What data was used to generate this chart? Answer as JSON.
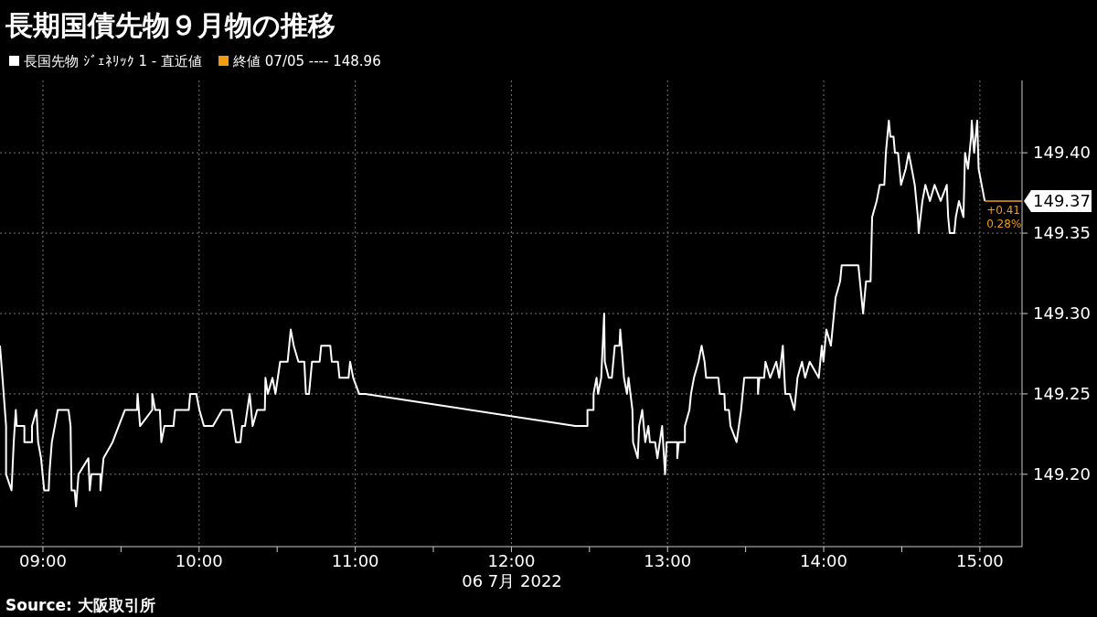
{
  "chart_data": {
    "type": "line",
    "title": "長期国債先物９月物の推移",
    "xlabel": "06 7月 2022",
    "legend": "top left",
    "grid": true,
    "marker": "none",
    "line_style": "solid",
    "xlim": [
      8.725,
      15.27
    ],
    "ylim": [
      149.155,
      149.445
    ],
    "xticks": [
      {
        "value": 9,
        "label": "09:00"
      },
      {
        "value": 9.5,
        "label": null
      },
      {
        "value": 10,
        "label": "10:00"
      },
      {
        "value": 10.5,
        "label": null
      },
      {
        "value": 11,
        "label": "11:00"
      },
      {
        "value": 11.5,
        "label": null
      },
      {
        "value": 12,
        "label": "12:00"
      },
      {
        "value": 12.5,
        "label": null
      },
      {
        "value": 13,
        "label": "13:00"
      },
      {
        "value": 13.5,
        "label": null
      },
      {
        "value": 14,
        "label": "14:00"
      },
      {
        "value": 14.5,
        "label": null
      },
      {
        "value": 15,
        "label": "15:00"
      }
    ],
    "yticks": [
      {
        "value": 149.2,
        "label": "149.20"
      },
      {
        "value": 149.25,
        "label": "149.25"
      },
      {
        "value": 149.3,
        "label": "149.30"
      },
      {
        "value": 149.35,
        "label": "149.35"
      },
      {
        "value": 149.4,
        "label": "149.40"
      }
    ],
    "series": [
      {
        "name": "長国先物 ｼﾞｪﾈﾘｯｸ 1 - 直近値",
        "color": "#ffffff",
        "x": [
          8.725,
          8.741,
          8.764,
          8.764,
          8.799,
          8.813,
          8.826,
          8.832,
          8.881,
          8.881,
          8.93,
          8.93,
          8.959,
          8.969,
          8.988,
          8.998,
          9.008,
          9.037,
          9.041,
          9.057,
          9.076,
          9.095,
          9.164,
          9.177,
          9.183,
          9.203,
          9.212,
          9.228,
          9.291,
          9.3,
          9.31,
          9.368,
          9.368,
          9.388,
          9.446,
          9.485,
          9.525,
          9.602,
          9.606,
          9.622,
          9.7,
          9.7,
          9.719,
          9.749,
          9.758,
          9.778,
          9.836,
          9.846,
          9.934,
          9.943,
          9.982,
          10.002,
          10.031,
          10.089,
          10.148,
          10.206,
          10.236,
          10.265,
          10.275,
          10.294,
          10.324,
          10.343,
          10.372,
          10.421,
          10.425,
          10.44,
          10.47,
          10.489,
          10.519,
          10.567,
          10.587,
          10.606,
          10.636,
          10.674,
          10.684,
          10.704,
          10.723,
          10.772,
          10.782,
          10.84,
          10.85,
          10.889,
          10.899,
          10.957,
          10.967,
          10.987,
          11.025,
          11.064,
          12.409,
          12.487,
          12.487,
          12.526,
          12.526,
          12.545,
          12.555,
          12.575,
          12.594,
          12.598,
          12.623,
          12.643,
          12.662,
          12.692,
          12.697,
          12.721,
          12.74,
          12.75,
          12.775,
          12.779,
          12.809,
          12.818,
          12.838,
          12.857,
          12.877,
          12.887,
          12.92,
          12.935,
          12.965,
          12.984,
          12.994,
          13.062,
          13.062,
          13.072,
          13.111,
          13.111,
          13.14,
          13.15,
          13.169,
          13.198,
          13.218,
          13.237,
          13.247,
          13.276,
          13.325,
          13.335,
          13.364,
          13.368,
          13.393,
          13.403,
          13.442,
          13.471,
          13.491,
          13.579,
          13.579,
          13.588,
          13.618,
          13.627,
          13.657,
          13.696,
          13.715,
          13.738,
          13.754,
          13.783,
          13.812,
          13.832,
          13.861,
          13.881,
          13.91,
          13.968,
          13.988,
          13.998,
          14.017,
          14.046,
          14.056,
          14.066,
          14.076,
          14.105,
          14.115,
          14.222,
          14.242,
          14.252,
          14.271,
          14.3,
          14.31,
          14.339,
          14.359,
          14.388,
          14.398,
          14.417,
          14.427,
          14.447,
          14.456,
          14.476,
          14.495,
          14.525,
          14.544,
          14.564,
          14.583,
          14.603,
          14.608,
          14.632,
          14.651,
          14.68,
          14.71,
          14.749,
          14.788,
          14.797,
          14.807,
          14.836,
          14.846,
          14.866,
          14.895,
          14.905,
          14.924,
          14.944,
          14.948,
          14.963,
          14.983,
          14.992,
          15.031
        ],
        "values": [
          149.28,
          149.26,
          149.23,
          149.2,
          149.19,
          149.22,
          149.24,
          149.23,
          149.23,
          149.22,
          149.22,
          149.23,
          149.24,
          149.22,
          149.21,
          149.2,
          149.19,
          149.19,
          149.2,
          149.22,
          149.23,
          149.24,
          149.24,
          149.23,
          149.19,
          149.19,
          149.18,
          149.2,
          149.21,
          149.19,
          149.2,
          149.2,
          149.19,
          149.21,
          149.22,
          149.23,
          149.24,
          149.24,
          149.25,
          149.23,
          149.24,
          149.25,
          149.24,
          149.24,
          149.22,
          149.23,
          149.23,
          149.24,
          149.24,
          149.25,
          149.25,
          149.24,
          149.23,
          149.23,
          149.24,
          149.24,
          149.22,
          149.22,
          149.23,
          149.23,
          149.25,
          149.23,
          149.24,
          149.24,
          149.26,
          149.25,
          149.26,
          149.25,
          149.27,
          149.27,
          149.29,
          149.28,
          149.27,
          149.27,
          149.25,
          149.25,
          149.27,
          149.27,
          149.28,
          149.28,
          149.27,
          149.27,
          149.26,
          149.26,
          149.27,
          149.26,
          149.25,
          149.25,
          149.23,
          149.23,
          149.24,
          149.24,
          149.25,
          149.26,
          149.25,
          149.26,
          149.3,
          149.27,
          149.26,
          149.26,
          149.28,
          149.28,
          149.29,
          149.26,
          149.25,
          149.26,
          149.24,
          149.22,
          149.21,
          149.23,
          149.24,
          149.22,
          149.23,
          149.22,
          149.22,
          149.21,
          149.23,
          149.2,
          149.22,
          149.22,
          149.21,
          149.22,
          149.22,
          149.23,
          149.24,
          149.25,
          149.26,
          149.27,
          149.28,
          149.27,
          149.26,
          149.26,
          149.26,
          149.25,
          149.25,
          149.24,
          149.24,
          149.23,
          149.22,
          149.24,
          149.26,
          149.26,
          149.25,
          149.26,
          149.26,
          149.27,
          149.26,
          149.27,
          149.26,
          149.28,
          149.25,
          149.25,
          149.24,
          149.26,
          149.27,
          149.26,
          149.27,
          149.26,
          149.28,
          149.27,
          149.29,
          149.28,
          149.29,
          149.3,
          149.31,
          149.32,
          149.33,
          149.33,
          149.31,
          149.3,
          149.32,
          149.32,
          149.36,
          149.37,
          149.38,
          149.38,
          149.4,
          149.42,
          149.41,
          149.41,
          149.4,
          149.4,
          149.38,
          149.39,
          149.4,
          149.39,
          149.38,
          149.36,
          149.35,
          149.37,
          149.38,
          149.37,
          149.38,
          149.37,
          149.38,
          149.36,
          149.35,
          149.35,
          149.36,
          149.37,
          149.36,
          149.4,
          149.39,
          149.41,
          149.42,
          149.4,
          149.42,
          149.39,
          149.37
        ]
      }
    ],
    "annotations": [
      "終値 07/05 ---- 148.96",
      "Source: 大阪取引所",
      "149.37",
      {
        "text": "+0.41",
        "x": 15.031,
        "y": 149.37
      },
      {
        "text": "0.28%",
        "x": 15.031,
        "y": 149.37
      }
    ]
  }
}
